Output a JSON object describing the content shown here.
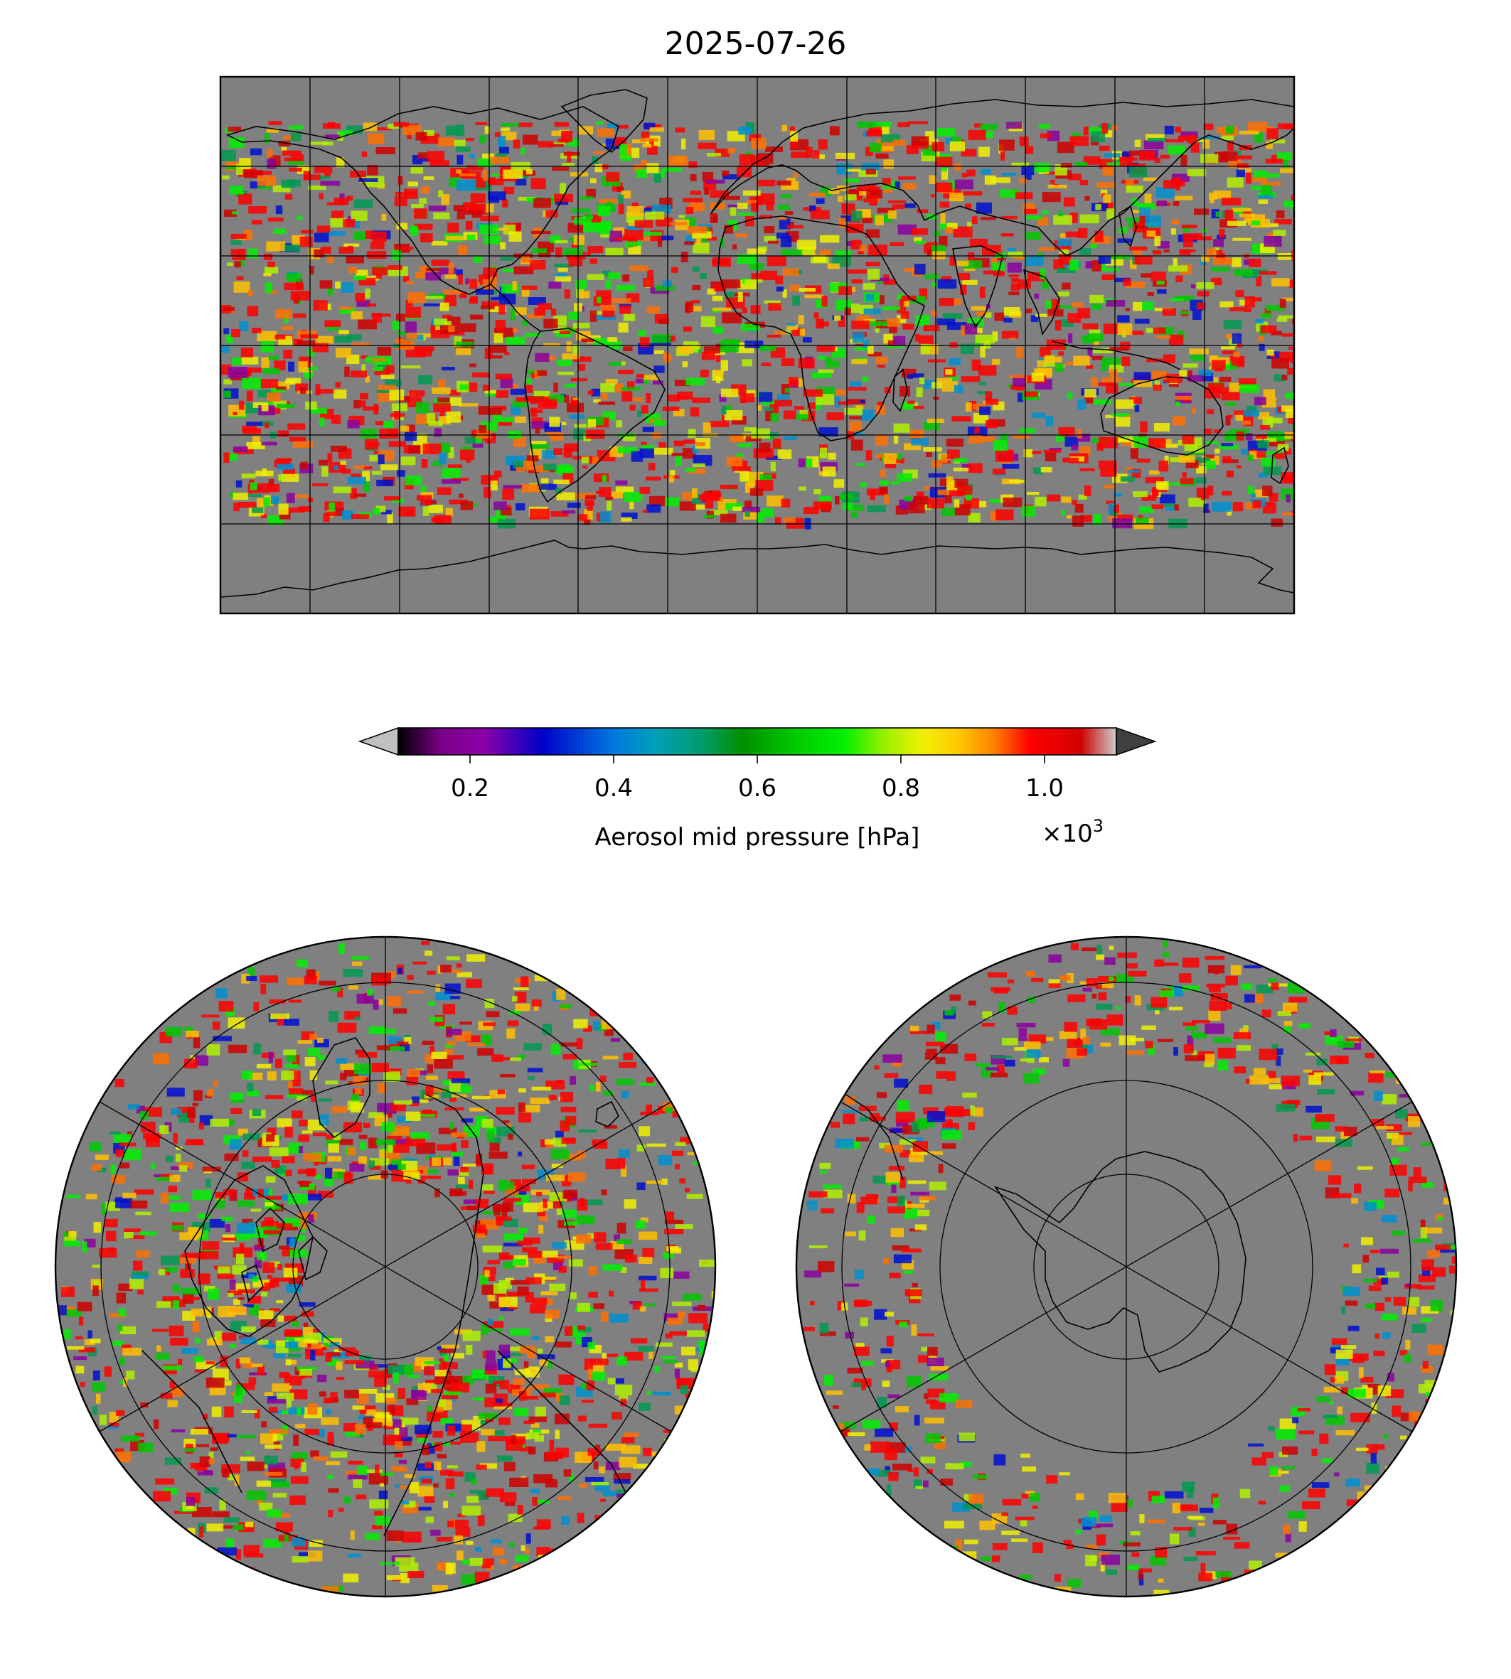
{
  "title": "2025-07-26",
  "colorbar": {
    "label": "Aerosol mid pressure [hPa]",
    "multiplier": "×10",
    "multiplier_exp": "3",
    "ticks": [
      "0.2",
      "0.4",
      "0.6",
      "0.8",
      "1.0"
    ],
    "tick_values": [
      0.2,
      0.4,
      0.6,
      0.8,
      1.0
    ],
    "range": [
      0.1,
      1.1
    ],
    "extend": "both",
    "colormap": "nipy_spectral"
  },
  "maps": {
    "global": {
      "projection": "plate-carree",
      "background": "#808080"
    },
    "north_polar": {
      "projection": "north-polar-stereographic",
      "background": "#808080"
    },
    "south_polar": {
      "projection": "south-polar-stereographic",
      "background": "#808080"
    }
  },
  "palette": [
    "#8b00a0",
    "#0010d0",
    "#0090d0",
    "#009a50",
    "#00c800",
    "#00f000",
    "#b0f000",
    "#f0f000",
    "#ffc000",
    "#ff7000",
    "#ff0000",
    "#d00000"
  ]
}
